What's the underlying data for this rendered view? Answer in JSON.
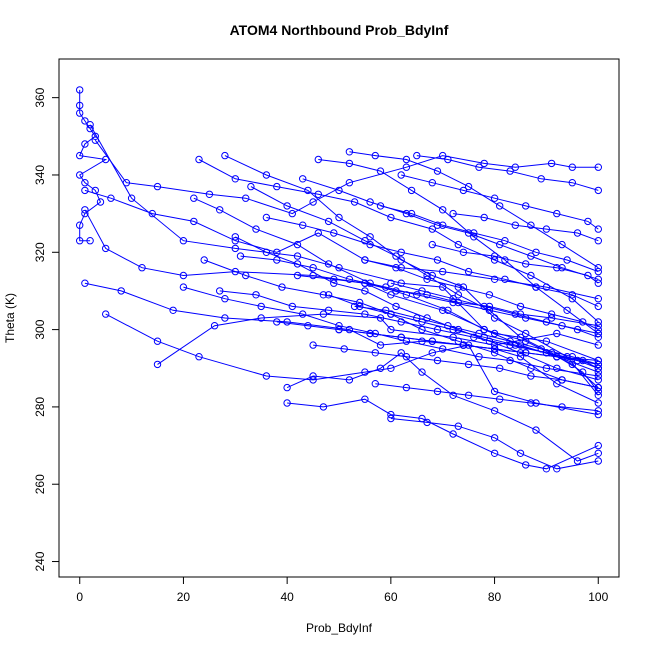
{
  "chart_data": {
    "type": "scatter",
    "title": "ATOM4 Northbound Prob_BdyInf",
    "xlabel": "Prob_BdyInf",
    "ylabel": "Theta (K)",
    "xlim": [
      -4,
      104
    ],
    "ylim": [
      236,
      370
    ],
    "x_ticks": [
      0,
      20,
      40,
      60,
      80,
      100
    ],
    "y_ticks": [
      240,
      260,
      280,
      300,
      320,
      340,
      360
    ],
    "grid": false,
    "legend": "none",
    "mark_color": "#0000ff",
    "line_color": "#0000ff",
    "series": [
      {
        "x": [
          0,
          0,
          0,
          1,
          2,
          3,
          1,
          0,
          5,
          0,
          1,
          3,
          4,
          1,
          0,
          0,
          2
        ],
        "y": [
          362,
          358,
          356,
          354,
          352,
          350,
          348,
          345,
          344,
          340,
          338,
          336,
          333,
          330,
          327,
          323,
          323
        ]
      },
      {
        "x": [
          3,
          9,
          15,
          25,
          32,
          41,
          45,
          52,
          63,
          70,
          78,
          84,
          91,
          95,
          100
        ],
        "y": [
          349,
          338,
          337,
          335,
          334,
          330,
          333,
          338,
          342,
          345,
          343,
          342,
          343,
          342,
          342
        ]
      },
      {
        "x": [
          1,
          6,
          14,
          22,
          30,
          38,
          46,
          55,
          62,
          70,
          80,
          90,
          100
        ],
        "y": [
          336,
          334,
          330,
          328,
          323,
          320,
          325,
          318,
          316,
          315,
          313,
          311,
          308
        ]
      },
      {
        "x": [
          1,
          5,
          12,
          20,
          30,
          45,
          55,
          60,
          70,
          80,
          90,
          100
        ],
        "y": [
          331,
          321,
          316,
          314,
          315,
          314,
          312,
          309,
          305,
          299,
          297,
          292
        ]
      },
      {
        "x": [
          1,
          8,
          18,
          28,
          40,
          52,
          58,
          66,
          74,
          80,
          85,
          92,
          100
        ],
        "y": [
          312,
          310,
          305,
          303,
          302,
          300,
          296,
          297,
          296,
          295,
          293,
          286,
          281
        ]
      },
      {
        "x": [
          5,
          15,
          23,
          36,
          45,
          55,
          60,
          68,
          75,
          80,
          88,
          100
        ],
        "y": [
          304,
          297,
          293,
          288,
          287,
          289,
          290,
          294,
          296,
          284,
          281,
          278
        ]
      },
      {
        "x": [
          15,
          26,
          35,
          47,
          58,
          60,
          72,
          80,
          92,
          100
        ],
        "y": [
          291,
          301,
          303,
          304,
          303,
          300,
          298,
          296,
          299,
          296
        ]
      },
      {
        "x": [
          2,
          10,
          20,
          30,
          42,
          50,
          62,
          70,
          78,
          86,
          95,
          100
        ],
        "y": [
          353,
          334,
          323,
          321,
          319,
          316,
          312,
          311,
          300,
          297,
          291,
          285
        ]
      },
      {
        "x": [
          23,
          30,
          38,
          46,
          53,
          60,
          68,
          73,
          80,
          87,
          95,
          100
        ],
        "y": [
          344,
          339,
          337,
          335,
          333,
          329,
          326,
          322,
          318,
          314,
          308,
          302
        ]
      },
      {
        "x": [
          22,
          27,
          34,
          42,
          48,
          56,
          63,
          71,
          78,
          85,
          92,
          100
        ],
        "y": [
          334,
          331,
          326,
          322,
          317,
          312,
          309,
          305,
          300,
          296,
          293,
          289
        ]
      },
      {
        "x": [
          40,
          45,
          52,
          58,
          62,
          66,
          72,
          80,
          88,
          96,
          100
        ],
        "y": [
          285,
          288,
          287,
          290,
          294,
          289,
          283,
          279,
          274,
          266,
          268
        ]
      },
      {
        "x": [
          40,
          47,
          55,
          60,
          66,
          72,
          80,
          86,
          90,
          100
        ],
        "y": [
          281,
          280,
          282,
          278,
          277,
          273,
          268,
          265,
          264,
          270
        ]
      },
      {
        "x": [
          60,
          67,
          73,
          80,
          85,
          92,
          100
        ],
        "y": [
          277,
          276,
          275,
          272,
          268,
          264,
          266
        ]
      },
      {
        "x": [
          28,
          36,
          44,
          50,
          56,
          62,
          68,
          74,
          80,
          86,
          94,
          100
        ],
        "y": [
          345,
          340,
          336,
          329,
          324,
          318,
          314,
          311,
          303,
          299,
          293,
          283
        ]
      },
      {
        "x": [
          33,
          40,
          48,
          55,
          61,
          67,
          73,
          79,
          85,
          91,
          97,
          100
        ],
        "y": [
          337,
          332,
          328,
          323,
          319,
          314,
          309,
          305,
          298,
          294,
          289,
          284
        ]
      },
      {
        "x": [
          46,
          52,
          58,
          64,
          70,
          76,
          82,
          88,
          94,
          100
        ],
        "y": [
          344,
          343,
          341,
          336,
          331,
          324,
          318,
          311,
          305,
          299
        ]
      },
      {
        "x": [
          52,
          57,
          63,
          69,
          75,
          81,
          87,
          93,
          100
        ],
        "y": [
          346,
          345,
          344,
          341,
          337,
          332,
          327,
          322,
          316
        ]
      },
      {
        "x": [
          30,
          36,
          42,
          49,
          55,
          61,
          67,
          73,
          79,
          85,
          92,
          100
        ],
        "y": [
          324,
          320,
          317,
          312,
          310,
          306,
          303,
          300,
          297,
          294,
          290,
          287
        ]
      },
      {
        "x": [
          24,
          32,
          39,
          47,
          54,
          60,
          66,
          73,
          80,
          87,
          93,
          100
        ],
        "y": [
          318,
          314,
          311,
          309,
          307,
          304,
          300,
          297,
          294,
          290,
          287,
          285
        ]
      },
      {
        "x": [
          20,
          28,
          35,
          43,
          50,
          57,
          63,
          70,
          77,
          83,
          90,
          100
        ],
        "y": [
          311,
          308,
          306,
          304,
          301,
          299,
          297,
          295,
          293,
          292,
          290,
          288
        ]
      },
      {
        "x": [
          43,
          50,
          56,
          63,
          69,
          75,
          81,
          87,
          93,
          100
        ],
        "y": [
          339,
          336,
          333,
          330,
          327,
          325,
          322,
          319,
          316,
          313
        ]
      },
      {
        "x": [
          36,
          43,
          49,
          56,
          62,
          69,
          75,
          82,
          88,
          95,
          100
        ],
        "y": [
          329,
          327,
          325,
          322,
          320,
          318,
          315,
          313,
          311,
          309,
          306
        ]
      },
      {
        "x": [
          31,
          38,
          45,
          52,
          59,
          65,
          72,
          79,
          86,
          93,
          100
        ],
        "y": [
          319,
          318,
          316,
          313,
          311,
          309,
          307,
          305,
          303,
          301,
          299
        ]
      },
      {
        "x": [
          27,
          34,
          41,
          48,
          55,
          62,
          69,
          76,
          83,
          90,
          97,
          100
        ],
        "y": [
          310,
          309,
          306,
          305,
          304,
          302,
          300,
          298,
          296,
          294,
          292,
          290
        ]
      },
      {
        "x": [
          48,
          54,
          60,
          66,
          72,
          78,
          84,
          90,
          96,
          100
        ],
        "y": [
          309,
          306,
          304,
          302,
          300,
          298,
          296,
          294,
          292,
          290
        ]
      },
      {
        "x": [
          55,
          61,
          67,
          73,
          79,
          85,
          91,
          97,
          100
        ],
        "y": [
          318,
          316,
          313,
          311,
          309,
          306,
          304,
          302,
          300
        ]
      },
      {
        "x": [
          58,
          64,
          70,
          76,
          82,
          88,
          94,
          100
        ],
        "y": [
          332,
          330,
          327,
          325,
          323,
          320,
          318,
          315
        ]
      },
      {
        "x": [
          62,
          68,
          74,
          80,
          86,
          92,
          98,
          100
        ],
        "y": [
          340,
          338,
          336,
          334,
          332,
          330,
          328,
          326
        ]
      },
      {
        "x": [
          65,
          71,
          77,
          83,
          89,
          95,
          100
        ],
        "y": [
          345,
          344,
          342,
          341,
          339,
          338,
          336
        ]
      },
      {
        "x": [
          45,
          51,
          57,
          63,
          69,
          75,
          81,
          87,
          93,
          100
        ],
        "y": [
          296,
          295,
          294,
          293,
          292,
          291,
          290,
          288,
          287,
          285
        ]
      },
      {
        "x": [
          50,
          56,
          62,
          68,
          74,
          80,
          86,
          92,
          100
        ],
        "y": [
          300,
          299,
          298,
          297,
          296,
          295,
          294,
          293,
          291
        ]
      },
      {
        "x": [
          57,
          63,
          69,
          75,
          81,
          87,
          93,
          100
        ],
        "y": [
          286,
          285,
          284,
          283,
          282,
          281,
          280,
          279
        ]
      },
      {
        "x": [
          38,
          44,
          50,
          56,
          62,
          68,
          74,
          80,
          86,
          92,
          100
        ],
        "y": [
          302,
          301,
          300,
          299,
          298,
          297,
          296,
          295,
          294,
          293,
          292
        ]
      },
      {
        "x": [
          60,
          66,
          72,
          78,
          84,
          90,
          96,
          100
        ],
        "y": [
          312,
          310,
          308,
          306,
          304,
          302,
          300,
          298
        ]
      },
      {
        "x": [
          68,
          74,
          80,
          86,
          92,
          98,
          100
        ],
        "y": [
          322,
          320,
          319,
          317,
          316,
          314,
          312
        ]
      },
      {
        "x": [
          72,
          78,
          84,
          90,
          96,
          100
        ],
        "y": [
          330,
          329,
          327,
          326,
          325,
          323
        ]
      },
      {
        "x": [
          53,
          59,
          65,
          71,
          77,
          83,
          89,
          95,
          100
        ],
        "y": [
          306,
          305,
          303,
          301,
          299,
          297,
          295,
          293,
          291
        ]
      },
      {
        "x": [
          42,
          49,
          55,
          61,
          67,
          73,
          79,
          85,
          91,
          100
        ],
        "y": [
          314,
          313,
          312,
          310,
          309,
          307,
          306,
          304,
          303,
          301
        ]
      }
    ]
  }
}
